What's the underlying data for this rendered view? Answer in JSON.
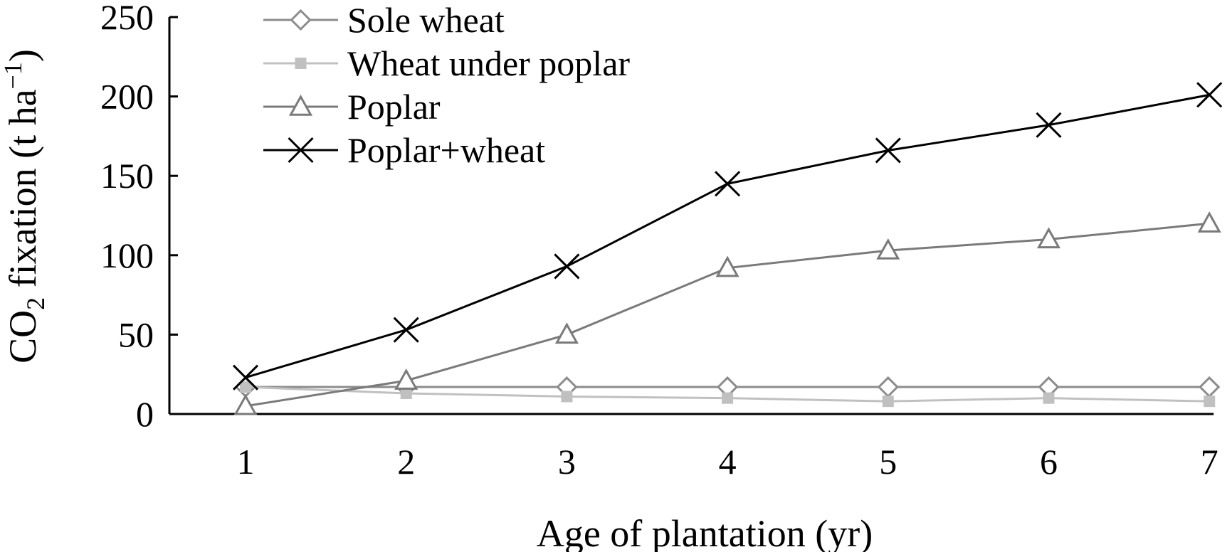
{
  "chart_data": {
    "type": "line",
    "xlabel": "Age of plantation (yr)",
    "ylabel": {
      "prefix": "CO",
      "subscript": "2",
      "middle": " fixation (t ha",
      "superscript": "−1",
      "suffix": ")"
    },
    "x": [
      1,
      2,
      3,
      4,
      5,
      6,
      7
    ],
    "x_ticks": [
      "1",
      "2",
      "3",
      "4",
      "5",
      "6",
      "7"
    ],
    "ylim": [
      0,
      250
    ],
    "y_ticks": [
      0,
      50,
      100,
      150,
      200,
      250
    ],
    "grid": false,
    "legend_position": "top-left",
    "series": [
      {
        "name": "Sole wheat",
        "marker": "diamond-open",
        "color": "#8c8c8c",
        "values": [
          17,
          17,
          17,
          17,
          17,
          17,
          17
        ]
      },
      {
        "name": "Wheat under poplar",
        "marker": "square-filled",
        "color": "#c0c0c0",
        "values": [
          17,
          13,
          11,
          10,
          8,
          10,
          8
        ]
      },
      {
        "name": "Poplar",
        "marker": "triangle-open",
        "color": "#7a7a7a",
        "values": [
          5,
          21,
          50,
          92,
          103,
          110,
          120
        ]
      },
      {
        "name": "Poplar+wheat",
        "marker": "x",
        "color": "#000000",
        "values": [
          23,
          53,
          93,
          145,
          166,
          182,
          201
        ]
      }
    ]
  }
}
